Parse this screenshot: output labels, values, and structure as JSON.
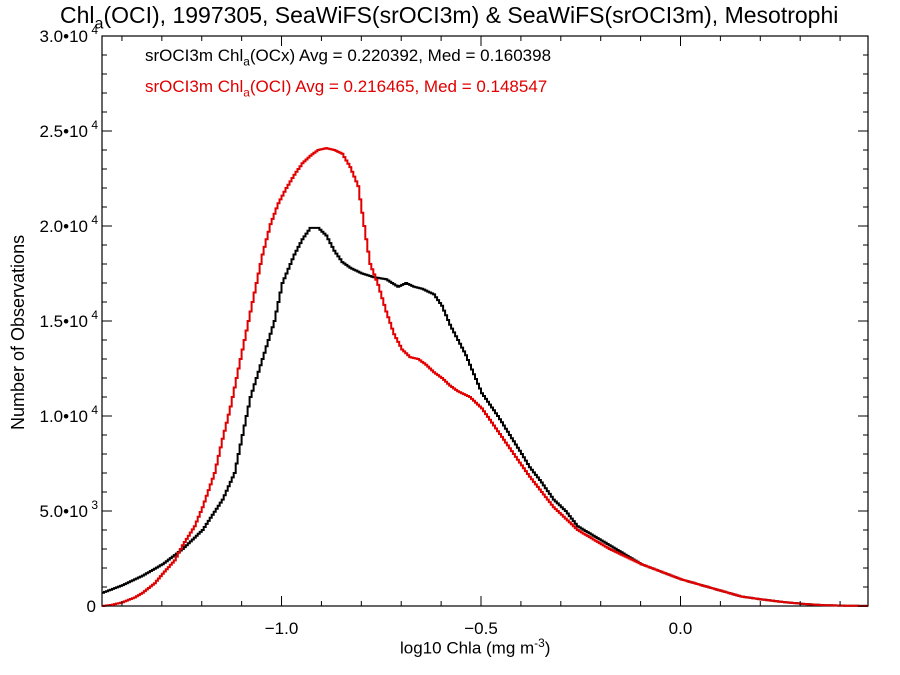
{
  "title": {
    "pre": "Chl",
    "sub": "a",
    "post": "(OCI), 1997305, SeaWiFS(srOCI3m) & SeaWiFS(srOCI3m), Mesotrophi"
  },
  "xlabel": {
    "pre": "log10 Chla (mg m",
    "sup": "-3",
    "post": ")"
  },
  "ylabel": "Number of Observations",
  "legend": [
    {
      "pre": "srOCI3m Chl",
      "sub": "a",
      "post": "(OCx) Avg = 0.220392, Med = 0.160398",
      "color": "#000000"
    },
    {
      "pre": "srOCI3m Chl",
      "sub": "a",
      "post": "(OCI) Avg = 0.216465, Med = 0.148547",
      "color": "#e00000"
    }
  ],
  "chart_data": {
    "type": "line",
    "step": true,
    "xlim": [
      -1.45,
      0.47
    ],
    "ylim": [
      0,
      30000
    ],
    "xticks": [
      {
        "value": -1.0,
        "label": "−1.0"
      },
      {
        "value": -0.5,
        "label": "−0.5"
      },
      {
        "value": 0.0,
        "label": "0.0"
      }
    ],
    "yticks": [
      {
        "value": 0,
        "label": "0"
      },
      {
        "value": 5000,
        "label": "5.0•10",
        "exp": "3"
      },
      {
        "value": 10000,
        "label": "1.0•10",
        "exp": "4"
      },
      {
        "value": 15000,
        "label": "1.5•10",
        "exp": "4"
      },
      {
        "value": 20000,
        "label": "2.0•10",
        "exp": "4"
      },
      {
        "value": 25000,
        "label": "2.5•10",
        "exp": "4"
      },
      {
        "value": 30000,
        "label": "3.0•10",
        "exp": "4"
      }
    ],
    "series": [
      {
        "name": "srOCI3m Chla(OCx)",
        "color": "#000000",
        "points": [
          [
            -1.45,
            700
          ],
          [
            -1.4,
            1100
          ],
          [
            -1.35,
            1600
          ],
          [
            -1.3,
            2200
          ],
          [
            -1.25,
            3000
          ],
          [
            -1.2,
            4000
          ],
          [
            -1.15,
            5600
          ],
          [
            -1.12,
            7000
          ],
          [
            -1.1,
            9000
          ],
          [
            -1.08,
            11000
          ],
          [
            -1.05,
            13000
          ],
          [
            -1.02,
            15000
          ],
          [
            -1.0,
            17000
          ],
          [
            -0.97,
            18500
          ],
          [
            -0.95,
            19300
          ],
          [
            -0.93,
            19900
          ],
          [
            -0.91,
            19900
          ],
          [
            -0.89,
            19500
          ],
          [
            -0.87,
            18700
          ],
          [
            -0.85,
            18100
          ],
          [
            -0.83,
            17800
          ],
          [
            -0.8,
            17500
          ],
          [
            -0.77,
            17300
          ],
          [
            -0.74,
            17200
          ],
          [
            -0.71,
            16800
          ],
          [
            -0.69,
            17000
          ],
          [
            -0.67,
            16800
          ],
          [
            -0.65,
            16700
          ],
          [
            -0.62,
            16400
          ],
          [
            -0.6,
            15800
          ],
          [
            -0.58,
            14800
          ],
          [
            -0.56,
            14000
          ],
          [
            -0.54,
            13200
          ],
          [
            -0.52,
            12200
          ],
          [
            -0.5,
            11200
          ],
          [
            -0.48,
            10600
          ],
          [
            -0.46,
            10000
          ],
          [
            -0.43,
            9000
          ],
          [
            -0.4,
            8000
          ],
          [
            -0.38,
            7300
          ],
          [
            -0.35,
            6500
          ],
          [
            -0.32,
            5600
          ],
          [
            -0.29,
            5000
          ],
          [
            -0.26,
            4200
          ],
          [
            -0.22,
            3700
          ],
          [
            -0.18,
            3200
          ],
          [
            -0.14,
            2700
          ],
          [
            -0.1,
            2200
          ],
          [
            -0.05,
            1800
          ],
          [
            0.0,
            1400
          ],
          [
            0.05,
            1100
          ],
          [
            0.1,
            800
          ],
          [
            0.15,
            500
          ],
          [
            0.2,
            350
          ],
          [
            0.25,
            220
          ],
          [
            0.3,
            120
          ],
          [
            0.35,
            50
          ],
          [
            0.4,
            20
          ],
          [
            0.47,
            0
          ]
        ]
      },
      {
        "name": "srOCI3m Chla(OCI)",
        "color": "#e00000",
        "points": [
          [
            -1.45,
            0
          ],
          [
            -1.43,
            50
          ],
          [
            -1.4,
            200
          ],
          [
            -1.37,
            450
          ],
          [
            -1.35,
            700
          ],
          [
            -1.32,
            1200
          ],
          [
            -1.3,
            1700
          ],
          [
            -1.27,
            2400
          ],
          [
            -1.25,
            3200
          ],
          [
            -1.22,
            4200
          ],
          [
            -1.2,
            5200
          ],
          [
            -1.17,
            7000
          ],
          [
            -1.15,
            8800
          ],
          [
            -1.13,
            10500
          ],
          [
            -1.11,
            12500
          ],
          [
            -1.09,
            14500
          ],
          [
            -1.07,
            16500
          ],
          [
            -1.05,
            18500
          ],
          [
            -1.03,
            20100
          ],
          [
            -1.01,
            21200
          ],
          [
            -0.99,
            22000
          ],
          [
            -0.97,
            22700
          ],
          [
            -0.95,
            23300
          ],
          [
            -0.93,
            23700
          ],
          [
            -0.91,
            24000
          ],
          [
            -0.89,
            24100
          ],
          [
            -0.87,
            24000
          ],
          [
            -0.85,
            23800
          ],
          [
            -0.83,
            23100
          ],
          [
            -0.81,
            22100
          ],
          [
            -0.8,
            20700
          ],
          [
            -0.79,
            19300
          ],
          [
            -0.78,
            18000
          ],
          [
            -0.76,
            16900
          ],
          [
            -0.74,
            15500
          ],
          [
            -0.72,
            14300
          ],
          [
            -0.7,
            13500
          ],
          [
            -0.68,
            13100
          ],
          [
            -0.66,
            13000
          ],
          [
            -0.64,
            12700
          ],
          [
            -0.62,
            12300
          ],
          [
            -0.6,
            12000
          ],
          [
            -0.58,
            11600
          ],
          [
            -0.56,
            11300
          ],
          [
            -0.53,
            11000
          ],
          [
            -0.5,
            10400
          ],
          [
            -0.48,
            9800
          ],
          [
            -0.46,
            9200
          ],
          [
            -0.44,
            8600
          ],
          [
            -0.42,
            8000
          ],
          [
            -0.4,
            7400
          ],
          [
            -0.38,
            6800
          ],
          [
            -0.35,
            6000
          ],
          [
            -0.32,
            5200
          ],
          [
            -0.29,
            4600
          ],
          [
            -0.26,
            4000
          ],
          [
            -0.22,
            3500
          ],
          [
            -0.18,
            3000
          ],
          [
            -0.14,
            2600
          ],
          [
            -0.1,
            2200
          ],
          [
            -0.05,
            1800
          ],
          [
            0.0,
            1400
          ],
          [
            0.05,
            1100
          ],
          [
            0.1,
            800
          ],
          [
            0.15,
            500
          ],
          [
            0.2,
            350
          ],
          [
            0.25,
            220
          ],
          [
            0.3,
            120
          ],
          [
            0.35,
            50
          ],
          [
            0.4,
            20
          ],
          [
            0.47,
            0
          ]
        ]
      }
    ]
  }
}
